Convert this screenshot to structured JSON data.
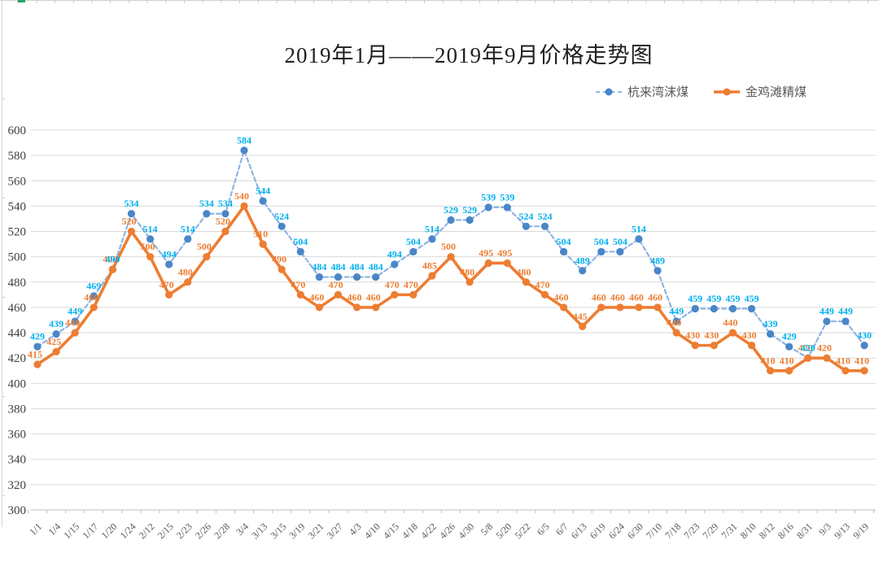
{
  "page": {
    "background": "#FFFFFF"
  },
  "worksheet_edges": {
    "top_tick_color": "#C9C9C9",
    "green_tick_color": "#21A366",
    "left_tick_color": "#C9C9C9"
  },
  "chart_data": {
    "type": "line",
    "title": "2019年1月——2019年9月价格走势图",
    "categories": [
      "1/1",
      "1/4",
      "1/15",
      "1/17",
      "1/20",
      "1/24",
      "2/12",
      "2/15",
      "2/23",
      "2/26",
      "2/28",
      "3/4",
      "3/13",
      "3/15",
      "3/19",
      "3/21",
      "3/27",
      "4/3",
      "4/10",
      "4/15",
      "4/18",
      "4/22",
      "4/26",
      "4/30",
      "5/8",
      "5/20",
      "5/22",
      "6/5",
      "6/7",
      "6/13",
      "6/19",
      "6/24",
      "6/30",
      "7/10",
      "7/18",
      "7/23",
      "7/29",
      "7/31",
      "8/10",
      "8/12",
      "8/16",
      "8/31",
      "9/3",
      "9/13",
      "9/19"
    ],
    "series": [
      {
        "name": "杭来湾沫煤",
        "line_style": "dashed",
        "line_color": "#8EB4E3",
        "marker_color": "#4A86C8",
        "label_color": "#00B0F0",
        "values": [
          429,
          439,
          449,
          469,
          490,
          534,
          514,
          494,
          514,
          534,
          534,
          584,
          544,
          524,
          504,
          484,
          484,
          484,
          484,
          494,
          504,
          514,
          529,
          529,
          539,
          539,
          524,
          524,
          504,
          489,
          504,
          504,
          514,
          489,
          449,
          459,
          459,
          459,
          459,
          439,
          429,
          420,
          449,
          449,
          430
        ]
      },
      {
        "name": "金鸡滩精煤",
        "line_style": "solid",
        "line_color": "#ED7D31",
        "marker_color": "#ED7D31",
        "label_color": "#ED7D31",
        "values": [
          415,
          425,
          440,
          460,
          490,
          520,
          500,
          470,
          480,
          500,
          520,
          540,
          510,
          490,
          470,
          460,
          470,
          460,
          460,
          470,
          470,
          485,
          500,
          480,
          495,
          495,
          480,
          470,
          460,
          445,
          460,
          460,
          460,
          460,
          440,
          430,
          430,
          440,
          430,
          410,
          410,
          420,
          420,
          410,
          410
        ]
      }
    ],
    "xlabel": "",
    "ylabel": "",
    "ylim": [
      300,
      600
    ],
    "y_ticks": [
      300,
      320,
      340,
      360,
      380,
      400,
      420,
      440,
      460,
      480,
      500,
      520,
      540,
      560,
      580,
      600
    ],
    "grid": true,
    "grid_color": "#D9D9D9",
    "axis_line_color": "#BFBFBF",
    "axis_text_color": "#595959",
    "y_tick_text_color": "#404040",
    "legend_position": "top-right"
  }
}
